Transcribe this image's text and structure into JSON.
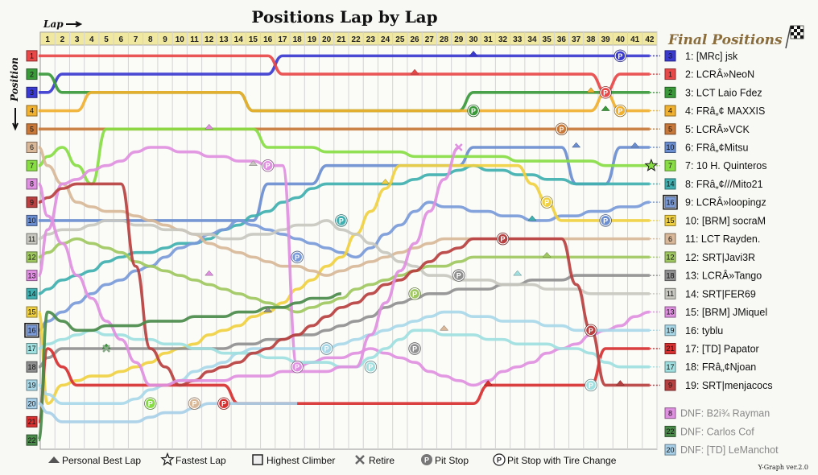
{
  "chart_data": {
    "type": "line",
    "title": "Positions Lap by Lap",
    "xlabel": "Lap",
    "ylabel": "Position",
    "laps": 42,
    "positions": 22,
    "x": [
      1,
      2,
      3,
      4,
      5,
      6,
      7,
      8,
      9,
      10,
      11,
      12,
      13,
      14,
      15,
      16,
      17,
      18,
      19,
      20,
      21,
      22,
      23,
      24,
      25,
      26,
      27,
      28,
      29,
      30,
      31,
      32,
      33,
      34,
      35,
      36,
      37,
      38,
      39,
      40,
      41,
      42
    ],
    "final_positions_title": "Final Positions",
    "series": [
      {
        "name": "[MRc] jsk",
        "grid": 3,
        "color": "#3a3ad0",
        "final": "1: [MRc] jsk",
        "keys": [
          [
            0,
            3
          ],
          [
            1,
            3
          ],
          [
            2,
            2
          ],
          [
            16,
            2
          ],
          [
            17,
            1
          ],
          [
            42,
            1
          ]
        ]
      },
      {
        "name": "LCRÂ»NeoN",
        "grid": 1,
        "color": "#e84848",
        "final": "2: LCRÂ»NeoN",
        "keys": [
          [
            0,
            1
          ],
          [
            16,
            1
          ],
          [
            17,
            2
          ],
          [
            38,
            2
          ],
          [
            39,
            3
          ],
          [
            40,
            2
          ],
          [
            42,
            2
          ]
        ]
      },
      {
        "name": "LCT Laio Fdez",
        "grid": 2,
        "color": "#3a9a3a",
        "final": "3: LCT Laio Fdez",
        "keys": [
          [
            0,
            2
          ],
          [
            1,
            2
          ],
          [
            2,
            3
          ],
          [
            14,
            3
          ],
          [
            15,
            4
          ],
          [
            29,
            4
          ],
          [
            30,
            3
          ],
          [
            42,
            3
          ]
        ]
      },
      {
        "name": "FRâ„¢ MAXXIS",
        "grid": 4,
        "color": "#f0b030",
        "final": "4: FRâ„¢ MAXXIS",
        "keys": [
          [
            0,
            4
          ],
          [
            3,
            4
          ],
          [
            4,
            3
          ],
          [
            14,
            3
          ],
          [
            15,
            4
          ],
          [
            38,
            4
          ],
          [
            39,
            3
          ],
          [
            40,
            4
          ],
          [
            42,
            4
          ]
        ]
      },
      {
        "name": "LCRÂ»VCK",
        "grid": 5,
        "color": "#c87838",
        "final": "5: LCRÂ»VCK",
        "keys": [
          [
            0,
            5
          ],
          [
            42,
            5
          ]
        ]
      },
      {
        "name": "FRâ„¢Mitsu",
        "grid": 10,
        "color": "#6a8ed0",
        "final": "6: FRâ„¢Mitsu",
        "keys": [
          [
            0,
            10
          ],
          [
            15,
            10
          ],
          [
            16,
            8
          ],
          [
            19,
            8
          ],
          [
            20,
            7
          ],
          [
            29,
            7
          ],
          [
            30,
            6
          ],
          [
            36,
            6
          ],
          [
            37,
            8
          ],
          [
            39,
            8
          ],
          [
            40,
            6
          ],
          [
            42,
            6
          ]
        ]
      },
      {
        "name": "10 H. Quinteros",
        "grid": 7,
        "color": "#88dd44",
        "final": "7: 10 H. Quinteros",
        "keys": [
          [
            0,
            7
          ],
          [
            2,
            6
          ],
          [
            4,
            8
          ],
          [
            5,
            5
          ],
          [
            15,
            5
          ],
          [
            16,
            6
          ],
          [
            42,
            7
          ]
        ]
      },
      {
        "name": "FRâ„¢///Mito21",
        "grid": 14,
        "color": "#40b0b0",
        "final": "8: FRâ„¢///Mito21",
        "keys": [
          [
            0,
            14
          ],
          [
            6,
            12
          ],
          [
            12,
            11
          ],
          [
            17,
            9
          ],
          [
            20,
            8
          ],
          [
            25,
            8
          ],
          [
            30,
            7
          ],
          [
            37,
            8
          ],
          [
            42,
            8
          ]
        ]
      },
      {
        "name": "LCRÂ»loopingz",
        "grid": 16,
        "color": "#7a9ad8",
        "final": "9: LCRÂ»loopingz",
        "keys": [
          [
            0,
            16
          ],
          [
            4,
            14
          ],
          [
            9,
            12
          ],
          [
            14,
            10
          ],
          [
            18,
            11
          ],
          [
            22,
            12
          ],
          [
            27,
            9
          ],
          [
            35,
            10
          ],
          [
            42,
            9
          ]
        ]
      },
      {
        "name": "[BRM] socraM",
        "grid": 15,
        "color": "#f0d040",
        "final": "10: [BRM] socraM",
        "keys": [
          [
            0,
            15
          ],
          [
            1,
            20
          ],
          [
            2,
            19
          ],
          [
            7,
            18
          ],
          [
            16,
            15
          ],
          [
            21,
            12
          ],
          [
            25,
            7
          ],
          [
            33,
            7
          ],
          [
            36,
            10
          ],
          [
            42,
            10
          ]
        ]
      },
      {
        "name": "LCT Rayden.",
        "grid": 6,
        "color": "#d8b898",
        "final": "11: LCT Rayden.",
        "keys": [
          [
            0,
            6
          ],
          [
            3,
            9
          ],
          [
            8,
            10
          ],
          [
            15,
            12
          ],
          [
            20,
            13
          ],
          [
            28,
            11
          ],
          [
            38,
            11
          ],
          [
            42,
            11
          ]
        ]
      },
      {
        "name": "SRT|Javi3R",
        "grid": 12,
        "color": "#a0c860",
        "final": "12: SRT|Javi3R",
        "keys": [
          [
            0,
            12
          ],
          [
            3,
            11
          ],
          [
            10,
            13
          ],
          [
            18,
            15
          ],
          [
            25,
            13
          ],
          [
            30,
            12
          ],
          [
            42,
            12
          ]
        ]
      },
      {
        "name": "LCRÂ»Tango",
        "grid": 18,
        "color": "#909090",
        "final": "13: LCRÂ»Tango",
        "keys": [
          [
            0,
            18
          ],
          [
            2,
            17
          ],
          [
            12,
            17
          ],
          [
            20,
            16
          ],
          [
            27,
            14
          ],
          [
            38,
            13
          ],
          [
            42,
            13
          ]
        ]
      },
      {
        "name": "SRT|FER69",
        "grid": 11,
        "color": "#c8c8c0",
        "final": "14: SRT|FER69",
        "keys": [
          [
            0,
            11
          ],
          [
            5,
            10
          ],
          [
            14,
            11
          ],
          [
            20,
            10
          ],
          [
            27,
            13
          ],
          [
            39,
            14
          ],
          [
            42,
            14
          ]
        ]
      },
      {
        "name": "[BRM] JMiquel",
        "grid": 13,
        "color": "#e090e0",
        "final": "15: [BRM] JMiquel",
        "keys": [
          [
            0,
            13
          ],
          [
            2,
            8
          ],
          [
            8,
            6
          ],
          [
            17,
            7
          ],
          [
            18,
            18
          ],
          [
            23,
            17
          ],
          [
            30,
            19
          ],
          [
            42,
            15
          ]
        ]
      },
      {
        "name": "tyblu",
        "grid": 19,
        "color": "#a8d8e8",
        "final": "16: tyblu",
        "keys": [
          [
            0,
            19
          ],
          [
            2,
            20
          ],
          [
            6,
            20
          ],
          [
            15,
            17
          ],
          [
            20,
            17
          ],
          [
            28,
            15
          ],
          [
            38,
            16
          ],
          [
            42,
            16
          ]
        ]
      },
      {
        "name": "[TD] Papator",
        "grid": 21,
        "color": "#d83030",
        "final": "17: [TD] Papator",
        "keys": [
          [
            0,
            21
          ],
          [
            1,
            17
          ],
          [
            3,
            19
          ],
          [
            13,
            19
          ],
          [
            14,
            20
          ],
          [
            30,
            20
          ],
          [
            31,
            19
          ],
          [
            38,
            19
          ],
          [
            39,
            17
          ],
          [
            42,
            17
          ]
        ]
      },
      {
        "name": "FRâ„¢Njoan",
        "grid": 17,
        "color": "#a0e0e0",
        "final": "18: FRâ„¢Njoan",
        "keys": [
          [
            0,
            17
          ],
          [
            4,
            16
          ],
          [
            11,
            17
          ],
          [
            22,
            18
          ],
          [
            26,
            16
          ],
          [
            37,
            17
          ],
          [
            40,
            18
          ],
          [
            42,
            18
          ]
        ]
      },
      {
        "name": "SRT|menjacocs",
        "grid": 9,
        "color": "#b84040",
        "final": "19: SRT|menjacocs",
        "keys": [
          [
            0,
            9
          ],
          [
            3,
            8
          ],
          [
            6,
            8
          ],
          [
            8,
            17
          ],
          [
            10,
            19
          ],
          [
            16,
            17
          ],
          [
            23,
            14
          ],
          [
            30,
            11
          ],
          [
            36,
            11
          ],
          [
            38,
            16
          ],
          [
            39,
            19
          ],
          [
            42,
            19
          ]
        ]
      },
      {
        "name": "B2i¾ Rayman",
        "grid": 8,
        "color": "#e090e0",
        "final": "DNF: B2i¾ Rayman",
        "dnf": true,
        "keys": [
          [
            0,
            8
          ],
          [
            3,
            13
          ],
          [
            8,
            19
          ],
          [
            22,
            18
          ],
          [
            29,
            6
          ]
        ]
      },
      {
        "name": "Carlos Cof",
        "grid": 22,
        "color": "#4a8a4a",
        "final": "DNF: Carlos Cof",
        "dnf": true,
        "keys": [
          [
            0,
            22
          ],
          [
            1,
            15
          ],
          [
            3,
            16
          ],
          [
            15,
            15
          ],
          [
            21,
            14
          ]
        ]
      },
      {
        "name": "[TD] LeManchot",
        "grid": 20,
        "color": "#a8d0e8",
        "final": "DNF: [TD] LeManchot",
        "dnf": true,
        "keys": [
          [
            0,
            20
          ],
          [
            2,
            21
          ],
          [
            7,
            21
          ],
          [
            12,
            20
          ],
          [
            18,
            20
          ]
        ]
      }
    ],
    "final_order": [
      3,
      1,
      2,
      4,
      5,
      10,
      7,
      14,
      16,
      15,
      6,
      12,
      18,
      11,
      13,
      19,
      21,
      17,
      9
    ],
    "dnf_grid": [
      8,
      22,
      20
    ],
    "pit_stops": [
      {
        "driver": "[MRc] jsk",
        "lap": 40,
        "pos": 1,
        "color": "#3a3ad0"
      },
      {
        "driver": "LCRÂ»NeoN",
        "lap": 39,
        "pos": 3,
        "color": "#e84848"
      },
      {
        "driver": "LCT Laio Fdez",
        "lap": 30,
        "pos": 4,
        "color": "#3a9a3a"
      },
      {
        "driver": "FRâ„¢ MAXXIS",
        "lap": 40,
        "pos": 4,
        "color": "#f0b030"
      },
      {
        "driver": "LCRÂ»VCK",
        "lap": 36,
        "pos": 5,
        "color": "#c87838"
      },
      {
        "driver": "[BRM] JMiquel",
        "lap": 16,
        "pos": 7,
        "color": "#e090e0"
      },
      {
        "driver": "[BRM] socraM",
        "lap": 35,
        "pos": 9,
        "color": "#f0d040"
      },
      {
        "driver": "FRâ„¢///Mito21",
        "lap": 21,
        "pos": 10,
        "color": "#40b0b0"
      },
      {
        "driver": "FRâ„¢Mitsu",
        "lap": 39,
        "pos": 10,
        "color": "#6a8ed0"
      },
      {
        "driver": "SRT|menjacocs",
        "lap": 32,
        "pos": 11,
        "color": "#b84040"
      },
      {
        "driver": "LCRÂ»loopingz",
        "lap": 18,
        "pos": 12,
        "color": "#7a9ad8"
      },
      {
        "driver": "LCRÂ»Tango",
        "lap": 29,
        "pos": 13,
        "color": "#909090"
      },
      {
        "driver": "SRT|Javi3R",
        "lap": 26,
        "pos": 14,
        "color": "#a0c860"
      },
      {
        "driver": "SRT|menjacocs",
        "lap": 38,
        "pos": 16,
        "color": "#b84040"
      },
      {
        "driver": "tyblu",
        "lap": 20,
        "pos": 17,
        "color": "#a8d8e8"
      },
      {
        "driver": "LCRÂ»Tango",
        "lap": 26,
        "pos": 17,
        "color": "#909090"
      },
      {
        "driver": "[BRM] JMiquel",
        "lap": 18,
        "pos": 18,
        "color": "#e090e0"
      },
      {
        "driver": "FRâ„¢Njoan",
        "lap": 23,
        "pos": 18,
        "color": "#a0e0e0"
      },
      {
        "driver": "FRâ„¢Njoan",
        "lap": 38,
        "pos": 19,
        "color": "#a0e0e0"
      },
      {
        "driver": "10 H. Quinteros",
        "lap": 8,
        "pos": 20,
        "color": "#88dd44"
      },
      {
        "driver": "LCT Rayden.",
        "lap": 11,
        "pos": 20,
        "color": "#d8b898"
      },
      {
        "driver": "[TD] Papator",
        "lap": 13,
        "pos": 20,
        "color": "#d83030"
      }
    ],
    "pit_label": "P",
    "best_laps": [
      {
        "lap": 30,
        "pos": 1,
        "color": "#3a3ad0"
      },
      {
        "lap": 26,
        "pos": 2,
        "color": "#e84848"
      },
      {
        "lap": 38,
        "pos": 3,
        "color": "#f0b030"
      },
      {
        "lap": 39,
        "pos": 4,
        "color": "#3a9a3a"
      },
      {
        "lap": 12,
        "pos": 5,
        "color": "#e090e0"
      },
      {
        "lap": 37,
        "pos": 6,
        "color": "#6a8ed0"
      },
      {
        "lap": 41,
        "pos": 6,
        "color": "#6a8ed0"
      },
      {
        "lap": 15,
        "pos": 7,
        "color": "#c8c8c0"
      },
      {
        "lap": 24,
        "pos": 8,
        "color": "#f0d040"
      },
      {
        "lap": 34,
        "pos": 10,
        "color": "#40b0b0"
      },
      {
        "lap": 35,
        "pos": 12,
        "color": "#a0c860"
      },
      {
        "lap": 12,
        "pos": 13,
        "color": "#e090e0"
      },
      {
        "lap": 33,
        "pos": 13,
        "color": "#a0e0e0"
      },
      {
        "lap": 16,
        "pos": 15,
        "color": "#909090"
      },
      {
        "lap": 28,
        "pos": 16,
        "color": "#d8b898"
      },
      {
        "lap": 5,
        "pos": 17,
        "color": "#3a9a3a"
      },
      {
        "lap": 31,
        "pos": 19,
        "color": "#d83030"
      },
      {
        "lap": 40,
        "pos": 19,
        "color": "#b84040"
      }
    ],
    "fastest_lap": {
      "lap": 42,
      "pos": 7,
      "color": "#88dd44"
    },
    "retires": [
      {
        "lap": 29,
        "pos": 6,
        "color": "#e090e0"
      },
      {
        "lap": 5,
        "pos": 17,
        "color": "#88aa88"
      }
    ],
    "highest_climber_grid": 16,
    "legend": [
      {
        "symbol": "triangle",
        "label": "Personal Best Lap"
      },
      {
        "symbol": "star",
        "label": "Fastest Lap"
      },
      {
        "symbol": "square",
        "label": "Highest Climber"
      },
      {
        "symbol": "cross",
        "label": "Retire"
      },
      {
        "symbol": "pit",
        "label": "Pit Stop"
      },
      {
        "symbol": "pit-tire",
        "label": "Pit Stop with Tire Change"
      }
    ],
    "version": "Y-Graph ver.2.0"
  }
}
